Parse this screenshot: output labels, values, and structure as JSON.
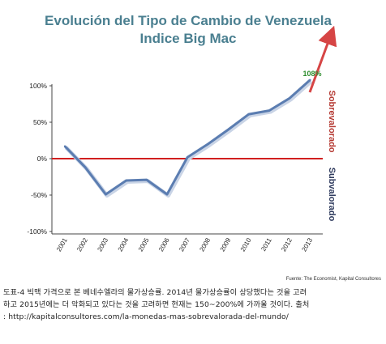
{
  "chart_data": {
    "type": "line",
    "title_line1": "Evolución del Tipo de Cambio de Venezuela",
    "title_line2": "Indice Big Mac",
    "categories": [
      "2001",
      "2002",
      "2003",
      "2004",
      "2005",
      "2006",
      "2007",
      "2008",
      "2009",
      "2010",
      "2011",
      "2012",
      "2013"
    ],
    "values": [
      17,
      -12,
      -49,
      -30,
      -29,
      -49,
      2,
      20,
      40,
      61,
      66,
      83,
      108
    ],
    "peak_label": "108%",
    "y_ticks": [
      "100%",
      "50%",
      "0%",
      "-50%",
      "-100%"
    ],
    "ylim": [
      -100,
      100
    ],
    "grid": false,
    "side_label_over": "Sobrevalorado",
    "side_label_under": "Subvalorado",
    "source": "Fuente: The Economist, Kapital Consultores",
    "colors": {
      "title": "#4a7f90",
      "line": "#5b7db1",
      "zero_line": "#d11f1f",
      "arrow": "#d64545",
      "over": "#b53a33",
      "under": "#2f3b5e",
      "peak_label": "#2c8c2c"
    }
  },
  "caption": {
    "line1": "도표-4 빅맥 가격으로 본 베네수엘라의 물가상승률. 2014년 물가상승률이 상당했다는 것을 고려",
    "line2": "하고 2015년에는 더 악화되고 있다는 것을 고려하면 현재는 150~200%에 가까울 것이다. 출처",
    "line3": ": http://kapitalconsultores.com/la-monedas-mas-sobrevalorada-del-mundo/"
  }
}
